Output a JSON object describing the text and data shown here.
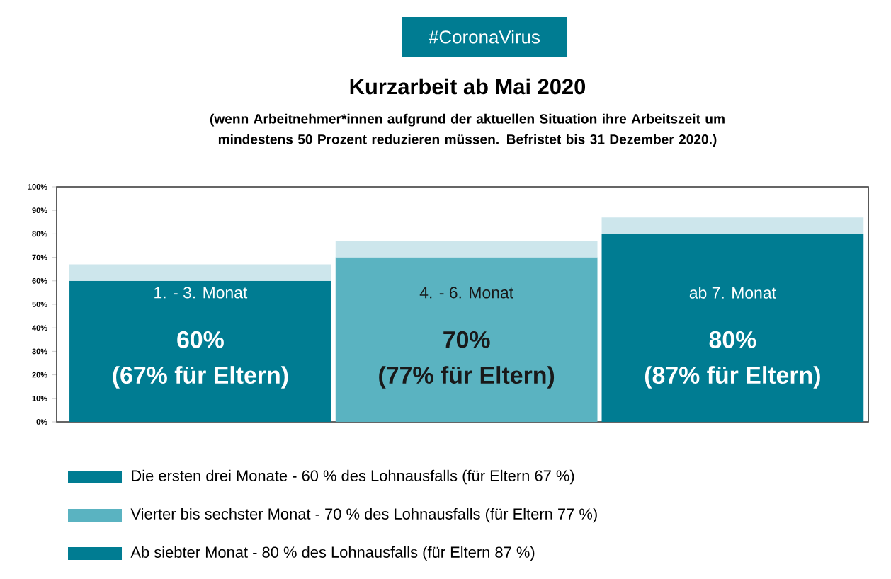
{
  "chart_data": {
    "type": "bar",
    "title": "Kurzarbeit ab Mai 2020",
    "subtitle": "(wenn Arbeitnehmer*innen aufgrund der aktuellen Situation ihre Arbeitszeit um mindestens 50 Prozent reduzieren müssen. Befristet bis 31 Dezember 2020.)",
    "categories": [
      "1. - 3. Monat",
      "4. - 6. Monat",
      "ab 7. Monat"
    ],
    "stacked": true,
    "series": [
      {
        "name": "Die ersten drei Monate - 60 % des Lohnausfalls (für Eltern 67 %)",
        "color": "#007c92",
        "values": [
          60,
          null,
          null
        ],
        "value_labels": [
          "60%",
          null,
          null
        ]
      },
      {
        "name": "Vierter bis sechster Monat - 70 % des Lohnausfalls (für Eltern 77 %)",
        "color": "#5ab3c1",
        "values": [
          null,
          70,
          null
        ],
        "value_labels": [
          null,
          "70%",
          null
        ]
      },
      {
        "name": "Ab siebter Monat - 80 % des Lohnausfalls (für Eltern 87 %)",
        "color": "#007c92",
        "values": [
          null,
          null,
          80
        ],
        "value_labels": [
          null,
          null,
          "80%"
        ]
      },
      {
        "color": "#cde6ec",
        "values": [
          7,
          7,
          7
        ]
      }
    ],
    "annotations": [
      "#CoronaVirus",
      "(67% für Eltern)",
      "(77% für Eltern)",
      "(87% für Eltern)"
    ],
    "ylim": [
      0,
      100
    ],
    "yticks": [
      {
        "value": 0,
        "label": "0%"
      },
      {
        "value": 10,
        "label": "10%"
      },
      {
        "value": 20,
        "label": "20%"
      },
      {
        "value": 30,
        "label": "30%"
      },
      {
        "value": 40,
        "label": "40%"
      },
      {
        "value": 50,
        "label": "50%"
      },
      {
        "value": 60,
        "label": "60%"
      },
      {
        "value": 70,
        "label": "70%"
      },
      {
        "value": 80,
        "label": "80%"
      },
      {
        "value": 90,
        "label": "90%"
      },
      {
        "value": 100,
        "label": "100%"
      }
    ],
    "legend": "bottom"
  }
}
